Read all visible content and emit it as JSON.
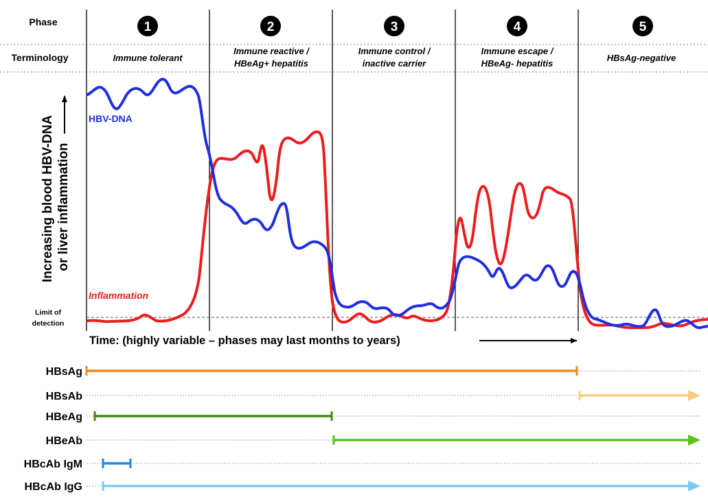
{
  "header": {
    "phase_label": "Phase",
    "terminology_label": "Terminology"
  },
  "phases": [
    {
      "number": "1",
      "terminology_line1": "Immune tolerant",
      "terminology_line2": ""
    },
    {
      "number": "2",
      "terminology_line1": "Immune reactive /",
      "terminology_line2": "HBeAg+ hepatitis"
    },
    {
      "number": "3",
      "terminology_line1": "Immune control /",
      "terminology_line2": "inactive carrier"
    },
    {
      "number": "4",
      "terminology_line1": "Immune escape /",
      "terminology_line2": "HBeAg- hepatitis"
    },
    {
      "number": "5",
      "terminology_line1": "HBsAg-negative",
      "terminology_line2": ""
    }
  ],
  "y_axis": {
    "line1": "Increasing blood HBV-DNA",
    "line2": "or liver inflammation"
  },
  "limit_of_detection": {
    "line1": "Limit of",
    "line2": "detection"
  },
  "time_axis": {
    "label": "Time: (highly variable – phases may last months to years)"
  },
  "series": {
    "hbv_dna": {
      "label": "HBV-DNA",
      "color": "#1f2ee0"
    },
    "inflammation": {
      "label": "Inflammation",
      "color": "#ee1c1c"
    }
  },
  "markers": [
    {
      "name": "HBsAg",
      "color": "#f08a1c",
      "start_phase": 1,
      "end_phase": 4,
      "end_style": "bar"
    },
    {
      "name": "HBsAb",
      "color": "#f5cd7e",
      "start_phase": 5,
      "end_phase": 5,
      "end_style": "arrow"
    },
    {
      "name": "HBeAg",
      "color": "#3e8a0e",
      "start_phase": 1,
      "end_phase": 2,
      "end_style": "bar"
    },
    {
      "name": "HBeAb",
      "color": "#57c41a",
      "start_phase": 3,
      "end_phase": 5,
      "end_style": "arrow"
    },
    {
      "name": "HBcAb IgM",
      "color": "#1e88e5",
      "start_phase": 1,
      "end_phase": 1,
      "end_style": "bar"
    },
    {
      "name": "HBcAb IgG",
      "color": "#7cc8f3",
      "start_phase": 1,
      "end_phase": 5,
      "end_style": "arrow"
    }
  ]
}
